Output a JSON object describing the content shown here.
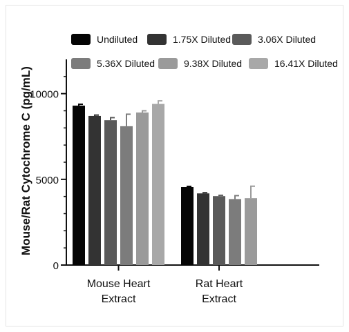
{
  "chart_data": {
    "type": "bar",
    "ylabel": "Mouse/Rat Cytochrome C (pg/mL)",
    "xlabel": "",
    "ylim": [
      0,
      12000
    ],
    "yticks": [
      0,
      5000,
      10000
    ],
    "ytick_labels": [
      "0",
      "5000",
      "10000"
    ],
    "categories": [
      [
        "Mouse Heart",
        "Extract"
      ],
      [
        "Rat Heart",
        "Extract"
      ]
    ],
    "legend_position": "top",
    "series": [
      {
        "name": "Undiluted",
        "color": "#050505",
        "values": [
          9300,
          4550
        ],
        "errors": [
          80,
          40
        ]
      },
      {
        "name": "1.75X Diluted",
        "color": "#333333",
        "values": [
          8700,
          4180
        ],
        "errors": [
          50,
          40
        ]
      },
      {
        "name": "3.06X Diluted",
        "color": "#5a5a5a",
        "values": [
          8450,
          4020
        ],
        "errors": [
          150,
          50
        ]
      },
      {
        "name": "5.36X Diluted",
        "color": "#7c7c7c",
        "values": [
          8100,
          3850
        ],
        "errors": [
          700,
          200
        ]
      },
      {
        "name": "9.38X Diluted",
        "color": "#9a9a9a",
        "values": [
          8900,
          3900
        ],
        "errors": [
          100,
          700
        ]
      },
      {
        "name": "16.41X Diluted",
        "color": "#a8a8a8",
        "values": [
          9400,
          null
        ],
        "errors": [
          180,
          null
        ]
      }
    ]
  }
}
